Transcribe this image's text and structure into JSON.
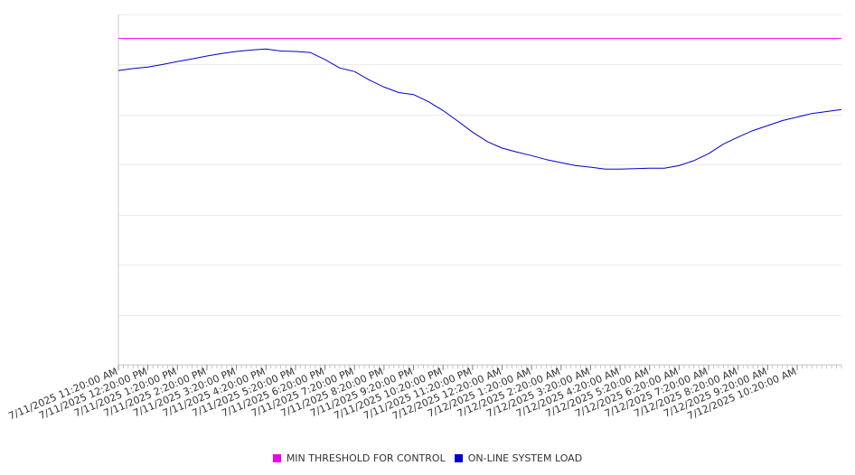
{
  "chart_data": {
    "type": "line",
    "title": "",
    "xlabel": "",
    "ylabel": "",
    "x_start": "7/11/2025 11:20:00 AM",
    "x_end": "7/12/2025 11:50:00 AM",
    "x_tick_labels": [
      "7/11/2025 11:20:00 AM",
      "7/11/2025 12:20:00 PM",
      "7/11/2025 1:20:00 PM",
      "7/11/2025 2:20:00 PM",
      "7/11/2025 3:20:00 PM",
      "7/11/2025 4:20:00 PM",
      "7/11/2025 5:20:00 PM",
      "7/11/2025 6:20:00 PM",
      "7/11/2025 7:20:00 PM",
      "7/11/2025 8:20:00 PM",
      "7/11/2025 9:20:00 PM",
      "7/11/2025 10:20:00 PM",
      "7/11/2025 11:20:00 PM",
      "7/12/2025 12:20:00 AM",
      "7/12/2025 1:20:00 AM",
      "7/12/2025 2:20:00 AM",
      "7/12/2025 3:20:00 AM",
      "7/12/2025 4:20:00 AM",
      "7/12/2025 5:20:00 AM",
      "7/12/2025 6:20:00 AM",
      "7/12/2025 7:20:00 AM",
      "7/12/2025 8:20:00 AM",
      "7/12/2025 9:20:00 AM",
      "7/12/2025 10:20:00 AM"
    ],
    "y_tick_labels_visible": false,
    "ylim": [
      0,
      7
    ],
    "grid": true,
    "legend_position": "bottom",
    "series": [
      {
        "name": "MIN THRESHOLD FOR CONTROL",
        "color": "#ee00ee",
        "x": [
          "7/11/2025 11:20:00 AM",
          "7/12/2025 11:50:00 AM"
        ],
        "values": [
          6.52,
          6.52
        ]
      },
      {
        "name": "ON-LINE SYSTEM LOAD",
        "color": "#0000cc",
        "x": [
          "7/11/2025 11:20:00 AM",
          "7/11/2025 11:50:00 AM",
          "7/11/2025 12:20:00 PM",
          "7/11/2025 12:50:00 PM",
          "7/11/2025 1:20:00 PM",
          "7/11/2025 1:50:00 PM",
          "7/11/2025 2:20:00 PM",
          "7/11/2025 2:50:00 PM",
          "7/11/2025 3:20:00 PM",
          "7/11/2025 3:50:00 PM",
          "7/11/2025 4:20:00 PM",
          "7/11/2025 4:50:00 PM",
          "7/11/2025 5:20:00 PM",
          "7/11/2025 5:50:00 PM",
          "7/11/2025 6:20:00 PM",
          "7/11/2025 6:50:00 PM",
          "7/11/2025 7:20:00 PM",
          "7/11/2025 7:50:00 PM",
          "7/11/2025 8:20:00 PM",
          "7/11/2025 8:50:00 PM",
          "7/11/2025 9:20:00 PM",
          "7/11/2025 9:50:00 PM",
          "7/11/2025 10:20:00 PM",
          "7/11/2025 10:50:00 PM",
          "7/11/2025 11:20:00 PM",
          "7/11/2025 11:50:00 PM",
          "7/12/2025 12:20:00 AM",
          "7/12/2025 12:50:00 AM",
          "7/12/2025 1:20:00 AM",
          "7/12/2025 1:50:00 AM",
          "7/12/2025 2:20:00 AM",
          "7/12/2025 2:50:00 AM",
          "7/12/2025 3:20:00 AM",
          "7/12/2025 3:50:00 AM",
          "7/12/2025 4:20:00 AM",
          "7/12/2025 4:50:00 AM",
          "7/12/2025 5:20:00 AM",
          "7/12/2025 5:50:00 AM",
          "7/12/2025 6:20:00 AM",
          "7/12/2025 6:50:00 AM",
          "7/12/2025 7:20:00 AM",
          "7/12/2025 7:50:00 AM",
          "7/12/2025 8:20:00 AM",
          "7/12/2025 8:50:00 AM",
          "7/12/2025 9:20:00 AM",
          "7/12/2025 9:50:00 AM",
          "7/12/2025 10:20:00 AM",
          "7/12/2025 10:50:00 AM",
          "7/12/2025 11:20:00 AM",
          "7/12/2025 11:50:00 AM"
        ],
        "values": [
          5.88,
          5.92,
          5.95,
          6.0,
          6.06,
          6.11,
          6.17,
          6.22,
          6.26,
          6.29,
          6.31,
          6.27,
          6.26,
          6.24,
          6.1,
          5.93,
          5.86,
          5.69,
          5.55,
          5.44,
          5.4,
          5.26,
          5.08,
          4.87,
          4.65,
          4.46,
          4.33,
          4.25,
          4.18,
          4.1,
          4.04,
          3.98,
          3.95,
          3.91,
          3.91,
          3.92,
          3.93,
          3.93,
          3.98,
          4.08,
          4.22,
          4.41,
          4.55,
          4.68,
          4.78,
          4.88,
          4.95,
          5.02,
          5.06,
          5.1
        ]
      }
    ]
  }
}
